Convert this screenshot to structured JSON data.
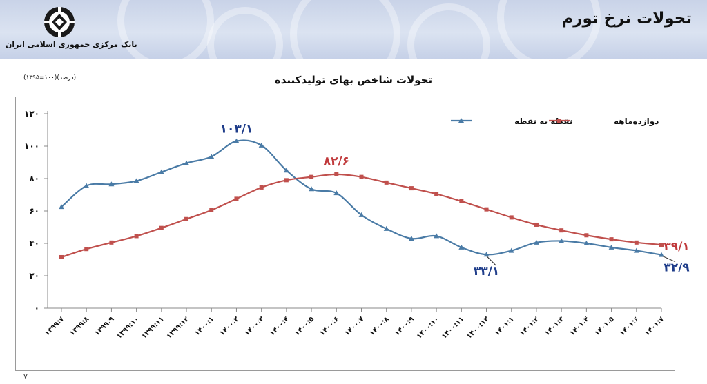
{
  "header": {
    "title": "تحولات نرخ تورم",
    "bank_name": "بانک مرکزی جمهوری اسلامی ایران"
  },
  "page_number": "۷",
  "chart_data": {
    "type": "line",
    "title": "تحولات شاخص بهای تولیدکننده",
    "unit_note": "(درصد)(۱۰۰=۱۳۹۵)",
    "xlabel": "",
    "ylabel": "",
    "ylim": [
      0,
      120
    ],
    "yticks": [
      0,
      20,
      40,
      60,
      80,
      100,
      120
    ],
    "ytick_labels": [
      "۰",
      "۲۰",
      "۴۰",
      "۶۰",
      "۸۰",
      "۱۰۰",
      "۱۲۰"
    ],
    "grid": false,
    "legend_position": "top-right",
    "categories": [
      "۱۳۹۹:۷",
      "۱۳۹۹:۸",
      "۱۳۹۹:۹",
      "۱۳۹۹:۱۰",
      "۱۳۹۹:۱۱",
      "۱۳۹۹:۱۲",
      "۱۴۰۰:۱",
      "۱۴۰۰:۲",
      "۱۴۰۰:۳",
      "۱۴۰۰:۴",
      "۱۴۰۰:۵",
      "۱۴۰۰:۶",
      "۱۴۰۰:۷",
      "۱۴۰۰:۸",
      "۱۴۰۰:۹",
      "۱۴۰۰:۱۰",
      "۱۴۰۰:۱۱",
      "۱۴۰۰:۱۲",
      "۱۴۰۱:۱",
      "۱۴۰۱:۲",
      "۱۴۰۱:۳",
      "۱۴۰۱:۴",
      "۱۴۰۱:۵",
      "۱۴۰۱:۶",
      "۱۴۰۱:۷"
    ],
    "series": [
      {
        "name": "نقطه به نقطه",
        "color": "#4a7ba6",
        "marker": "triangle",
        "values": [
          62.5,
          75.5,
          76.5,
          78.5,
          84,
          89.5,
          93.5,
          103.1,
          100.5,
          85,
          73.5,
          71,
          57.5,
          49,
          43,
          44.5,
          37.5,
          33.1,
          35.5,
          40.5,
          41.5,
          40,
          37.5,
          35.5,
          32.9
        ]
      },
      {
        "name": "دوازده‌ماهه",
        "color": "#c0504d",
        "marker": "square",
        "values": [
          31.5,
          36.5,
          40.5,
          44.5,
          49.5,
          55,
          60.5,
          67.5,
          74.5,
          79,
          81,
          82.6,
          81,
          77.5,
          74,
          70.5,
          66,
          61,
          56,
          51.5,
          48,
          45,
          42.5,
          40.5,
          39.1
        ]
      }
    ],
    "annotations": [
      {
        "text": "۱۰۳/۱",
        "series": 0,
        "index": 7,
        "color": "#1f3d8a"
      },
      {
        "text": "۸۲/۶",
        "series": 1,
        "index": 11,
        "color": "#c0393b"
      },
      {
        "text": "۳۳/۱",
        "series": 0,
        "index": 17,
        "color": "#1f3d8a"
      },
      {
        "text": "۳۹/۱",
        "series": 1,
        "index": 24,
        "color": "#c0393b"
      },
      {
        "text": "۳۲/۹",
        "series": 0,
        "index": 24,
        "color": "#1f3d8a"
      }
    ]
  }
}
